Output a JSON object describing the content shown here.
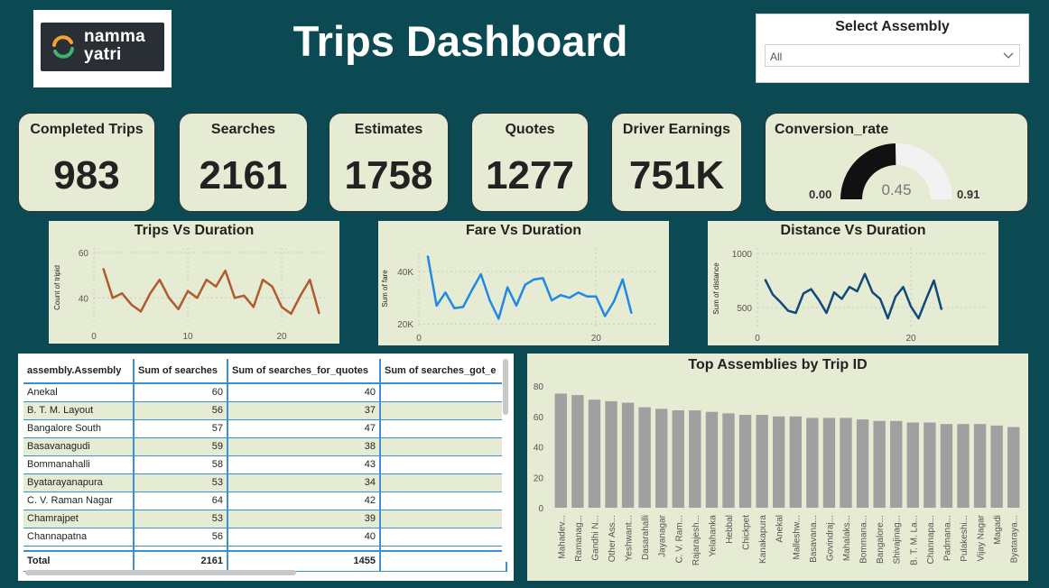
{
  "logo": {
    "line1": "namma",
    "line2": "yatri"
  },
  "title": "Trips Dashboard",
  "slicer": {
    "title": "Select Assembly",
    "value": "All"
  },
  "kpis": [
    {
      "label": "Completed Trips",
      "value": "983"
    },
    {
      "label": "Searches",
      "value": "2161"
    },
    {
      "label": "Estimates",
      "value": "1758"
    },
    {
      "label": "Quotes",
      "value": "1277"
    },
    {
      "label": "Driver Earnings",
      "value": "751K"
    }
  ],
  "gauge": {
    "label": "Conversion_rate",
    "min_label": "0.00",
    "max_label": "0.91",
    "value_label": "0.45",
    "min": 0,
    "max": 0.91,
    "value": 0.45
  },
  "colors": {
    "trips": "#b05a2e",
    "fare": "#1e8ae6",
    "distance": "#0e4a7a",
    "bars": "#a0a0a0",
    "gauge_fill": "#111111",
    "gauge_track": "#f2f2f2"
  },
  "chart_data": [
    {
      "type": "line",
      "title": "Trips Vs Duration",
      "ylabel": "Count of tripid",
      "xlabel": "",
      "x_ticks": [
        "0",
        "10",
        "20"
      ],
      "y_ticks": [
        "40",
        "60"
      ],
      "xlim": [
        0,
        25
      ],
      "ylim": [
        27,
        62
      ],
      "x": [
        1,
        2,
        3,
        4,
        5,
        6,
        7,
        8,
        9,
        10,
        11,
        12,
        13,
        14,
        15,
        16,
        17,
        18,
        19,
        20,
        21,
        22,
        23,
        24
      ],
      "series": [
        {
          "values": [
            53,
            40,
            42,
            37,
            34,
            42,
            48,
            40,
            35,
            43,
            40,
            48,
            45,
            52,
            40,
            41,
            36,
            48,
            45,
            36,
            33,
            41,
            48,
            33
          ]
        }
      ]
    },
    {
      "type": "line",
      "title": "Fare Vs Duration",
      "ylabel": "Sum of fare",
      "xlabel": "",
      "x_ticks": [
        "0",
        "20"
      ],
      "y_ticks": [
        "20K",
        "40K"
      ],
      "xlim": [
        0,
        27
      ],
      "ylim": [
        18000,
        49000
      ],
      "x": [
        1,
        2,
        3,
        4,
        5,
        6,
        7,
        8,
        9,
        10,
        11,
        12,
        13,
        14,
        15,
        16,
        17,
        18,
        19,
        20,
        21,
        22,
        23,
        24
      ],
      "series": [
        {
          "values": [
            46000,
            27000,
            32000,
            26000,
            26500,
            33000,
            39000,
            29000,
            22000,
            34000,
            27000,
            35000,
            37000,
            37500,
            29000,
            31000,
            30000,
            32000,
            30500,
            30500,
            23000,
            28500,
            37000,
            24000
          ]
        }
      ]
    },
    {
      "type": "line",
      "title": "Distance Vs Duration",
      "ylabel": "Sum of distance",
      "xlabel": "",
      "x_ticks": [
        "0",
        "20"
      ],
      "y_ticks": [
        "500",
        "1000"
      ],
      "xlim": [
        0,
        30
      ],
      "ylim": [
        300,
        1050
      ],
      "x": [
        1,
        2,
        3,
        4,
        5,
        6,
        7,
        8,
        9,
        10,
        11,
        12,
        13,
        14,
        15,
        16,
        17,
        18,
        19,
        20,
        21,
        22,
        23,
        24
      ],
      "series": [
        {
          "values": [
            760,
            620,
            550,
            470,
            450,
            630,
            670,
            570,
            450,
            640,
            580,
            690,
            650,
            810,
            640,
            580,
            400,
            600,
            690,
            510,
            400,
            580,
            750,
            480
          ]
        }
      ]
    },
    {
      "type": "bar",
      "title": "Top Assemblies by Trip ID",
      "xlabel": "",
      "ylabel": "",
      "y_ticks": [
        "0",
        "20",
        "40",
        "60",
        "80"
      ],
      "ylim": [
        0,
        80
      ],
      "categories": [
        "Mahadev...",
        "Ramanag...",
        "Gandhi N...",
        "Other Ass...",
        "Yeshwant...",
        "Dasarahalli",
        "Jayanagar",
        "C. V. Ram...",
        "Rajarajesh...",
        "Yelahanka",
        "Hebbal",
        "Chickpet",
        "Kanakapura",
        "Anekal",
        "Malleshw...",
        "Basavana...",
        "Govindraj...",
        "Mahalaks...",
        "Bommana...",
        "Bangalore...",
        "Shivajinag...",
        "B. T. M. La...",
        "Channapa...",
        "Padmana...",
        "Pulakeshi...",
        "Vijay Nagar",
        "Magadi",
        "Byataraya..."
      ],
      "values": [
        75,
        74,
        71,
        70,
        69,
        66,
        65,
        64,
        64,
        63,
        62,
        61,
        61,
        60,
        60,
        59,
        59,
        59,
        58,
        57,
        57,
        56,
        56,
        55,
        55,
        55,
        54,
        53
      ]
    }
  ],
  "table": {
    "headers": [
      "assembly.Assembly",
      "Sum of searches",
      "Sum of searches_for_quotes",
      "Sum of searches_got_e"
    ],
    "rows": [
      [
        "Anekal",
        "60",
        "40",
        ""
      ],
      [
        "B. T. M. Layout",
        "56",
        "37",
        ""
      ],
      [
        "Bangalore South",
        "57",
        "47",
        ""
      ],
      [
        "Basavanagudi",
        "59",
        "38",
        ""
      ],
      [
        "Bommanahalli",
        "58",
        "43",
        ""
      ],
      [
        "Byatarayanapura",
        "53",
        "34",
        ""
      ],
      [
        "C. V. Raman Nagar",
        "64",
        "42",
        ""
      ],
      [
        "Chamrajpet",
        "53",
        "39",
        ""
      ],
      [
        "Channapatna",
        "56",
        "40",
        ""
      ]
    ],
    "total": [
      "Total",
      "2161",
      "1455",
      ""
    ]
  }
}
